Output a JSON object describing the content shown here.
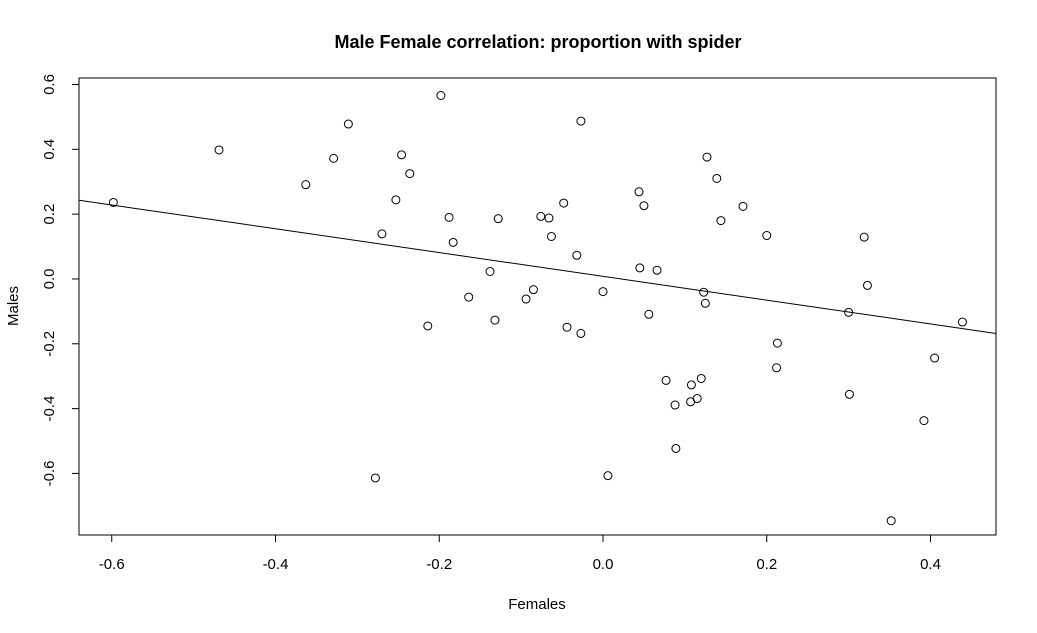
{
  "chart_data": {
    "type": "scatter",
    "title": "Male Female correlation: proportion with spider",
    "xlabel": "Females",
    "ylabel": "Males",
    "xlim": [
      -0.64,
      0.48
    ],
    "ylim": [
      -0.79,
      0.62
    ],
    "x_ticks": [
      -0.6,
      -0.4,
      -0.2,
      0.0,
      0.2,
      0.4
    ],
    "x_tick_labels": [
      "-0.6",
      "-0.4",
      "-0.2",
      "0.0",
      "0.2",
      "0.4"
    ],
    "y_ticks": [
      -0.6,
      -0.4,
      -0.2,
      0.0,
      0.2,
      0.4,
      0.6
    ],
    "y_tick_labels": [
      "-0.6",
      "-0.4",
      "-0.2",
      "0.0",
      "0.2",
      "0.4",
      "0.6"
    ],
    "grid": false,
    "points": [
      [
        -0.598,
        0.236
      ],
      [
        -0.469,
        0.398
      ],
      [
        -0.363,
        0.291
      ],
      [
        -0.329,
        0.372
      ],
      [
        -0.311,
        0.478
      ],
      [
        -0.278,
        -0.614
      ],
      [
        -0.27,
        0.139
      ],
      [
        -0.253,
        0.244
      ],
      [
        -0.246,
        0.383
      ],
      [
        -0.236,
        0.325
      ],
      [
        -0.214,
        -0.145
      ],
      [
        -0.198,
        0.566
      ],
      [
        -0.188,
        0.19
      ],
      [
        -0.183,
        0.113
      ],
      [
        -0.164,
        -0.056
      ],
      [
        -0.138,
        0.023
      ],
      [
        -0.132,
        -0.127
      ],
      [
        -0.128,
        0.186
      ],
      [
        -0.094,
        -0.062
      ],
      [
        -0.085,
        -0.033
      ],
      [
        -0.076,
        0.193
      ],
      [
        -0.066,
        0.188
      ],
      [
        -0.063,
        0.131
      ],
      [
        -0.048,
        0.234
      ],
      [
        -0.044,
        -0.149
      ],
      [
        -0.032,
        0.073
      ],
      [
        -0.027,
        0.487
      ],
      [
        -0.027,
        -0.168
      ],
      [
        0.0,
        -0.039
      ],
      [
        0.006,
        -0.607
      ],
      [
        0.044,
        0.269
      ],
      [
        0.045,
        0.034
      ],
      [
        0.05,
        0.226
      ],
      [
        0.056,
        -0.109
      ],
      [
        0.066,
        0.027
      ],
      [
        0.077,
        -0.313
      ],
      [
        0.088,
        -0.389
      ],
      [
        0.089,
        -0.523
      ],
      [
        0.107,
        -0.379
      ],
      [
        0.108,
        -0.327
      ],
      [
        0.115,
        -0.369
      ],
      [
        0.12,
        -0.307
      ],
      [
        0.123,
        -0.041
      ],
      [
        0.125,
        -0.075
      ],
      [
        0.127,
        0.376
      ],
      [
        0.139,
        0.31
      ],
      [
        0.144,
        0.18
      ],
      [
        0.171,
        0.224
      ],
      [
        0.2,
        0.134
      ],
      [
        0.212,
        -0.274
      ],
      [
        0.213,
        -0.198
      ],
      [
        0.3,
        -0.103
      ],
      [
        0.301,
        -0.356
      ],
      [
        0.319,
        0.129
      ],
      [
        0.323,
        -0.02
      ],
      [
        0.352,
        -0.746
      ],
      [
        0.392,
        -0.437
      ],
      [
        0.405,
        -0.244
      ],
      [
        0.439,
        -0.133
      ]
    ],
    "regression_line": {
      "intercept": 0.008,
      "slope": -0.367
    }
  }
}
